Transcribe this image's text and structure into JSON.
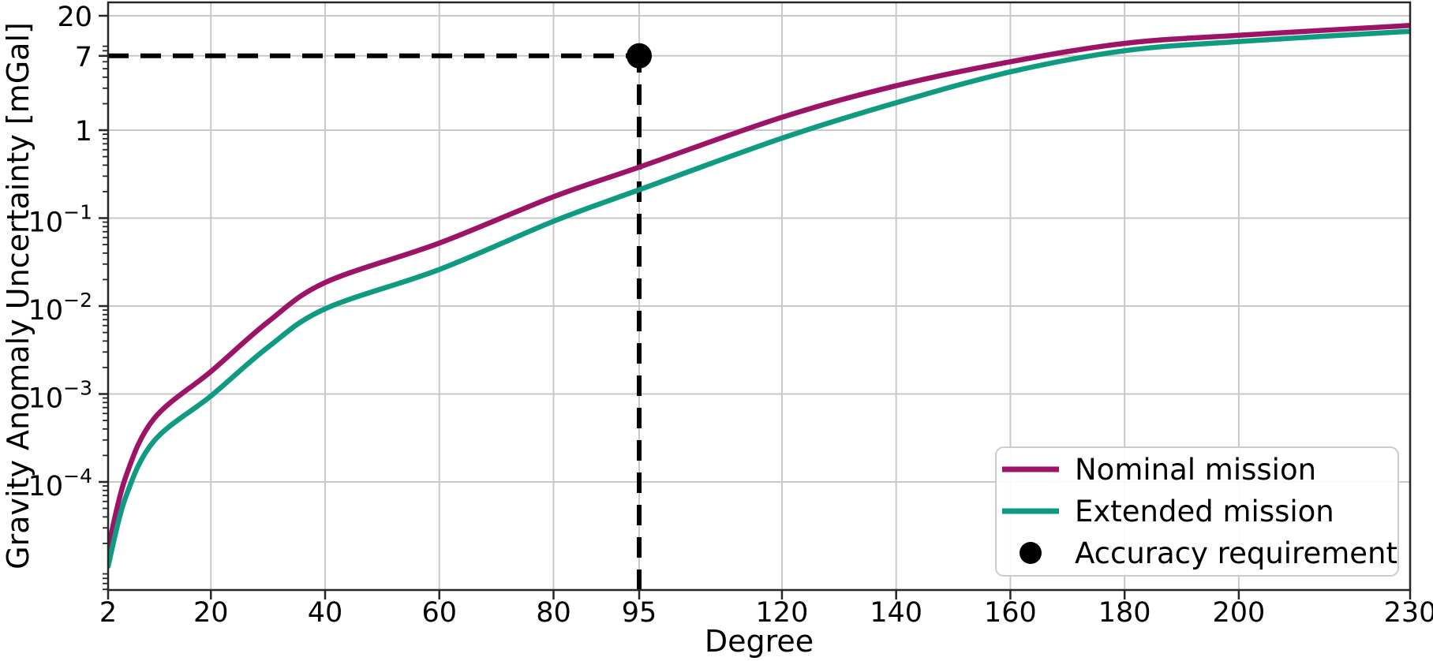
{
  "chart_data": {
    "type": "line",
    "title": "",
    "xlabel": "Degree",
    "ylabel": "Gravity Anomaly Uncertainty [mGal]",
    "yscale": "log",
    "xlim": [
      2,
      230
    ],
    "ylim": [
      5.9e-06,
      28.4
    ],
    "x_ticks": [
      2,
      20,
      40,
      60,
      80,
      95,
      120,
      140,
      160,
      180,
      200,
      230
    ],
    "y_ticks": [
      {
        "value": 20,
        "label": "20"
      },
      {
        "value": 7,
        "label": "7"
      },
      {
        "value": 1,
        "label": "1"
      },
      {
        "value": 0.1,
        "label": "10⁻¹",
        "base": "10",
        "exp": "−1"
      },
      {
        "value": 0.01,
        "label": "10⁻²",
        "base": "10",
        "exp": "−2"
      },
      {
        "value": 0.001,
        "label": "10⁻³",
        "base": "10",
        "exp": "−3"
      },
      {
        "value": 0.0001,
        "label": "10⁻⁴",
        "base": "10",
        "exp": "−4"
      }
    ],
    "x": [
      2,
      5,
      10,
      20,
      30,
      40,
      60,
      80,
      95,
      120,
      140,
      160,
      180,
      200,
      230
    ],
    "series": [
      {
        "name": "Nominal mission",
        "color": "#9c1368",
        "values": [
          1.75e-05,
          0.00011,
          0.00052,
          0.0018,
          0.0066,
          0.0185,
          0.052,
          0.175,
          0.38,
          1.4,
          3.2,
          6.0,
          9.7,
          12.0,
          15.5
        ]
      },
      {
        "name": "Extended mission",
        "color": "#0e9b81",
        "values": [
          1.1e-05,
          6.5e-05,
          0.00029,
          0.00095,
          0.0034,
          0.0093,
          0.026,
          0.092,
          0.21,
          0.81,
          2.05,
          4.6,
          8.0,
          10.2,
          13.3
        ]
      }
    ],
    "accuracy_requirement": {
      "label": "Accuracy requirement",
      "degree": 95,
      "value": 7,
      "color": "#000000",
      "guide_style": "dashed"
    },
    "legend": {
      "location": "lower right",
      "entries": [
        {
          "label": "Nominal mission",
          "type": "line",
          "color": "#9c1368"
        },
        {
          "label": "Extended mission",
          "type": "line",
          "color": "#0e9b81"
        },
        {
          "label": "Accuracy requirement",
          "type": "dot",
          "color": "#000000"
        }
      ]
    },
    "layout": {
      "grid": true,
      "grid_color": "#c8c8c8",
      "spine_color": "#262626",
      "background": "#ffffff",
      "legend_position": "lower right"
    }
  }
}
